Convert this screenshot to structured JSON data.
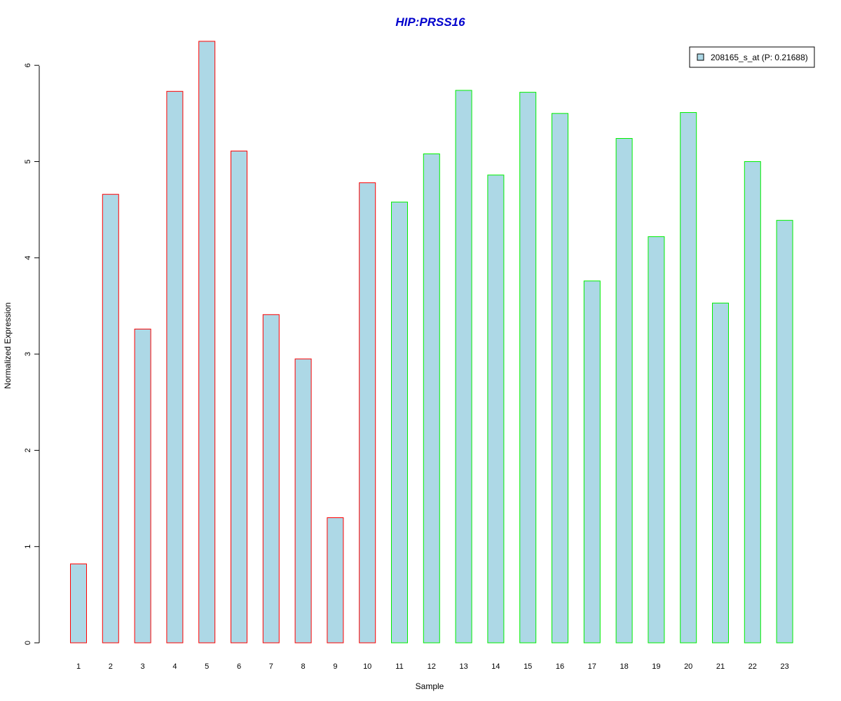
{
  "chart_data": {
    "type": "bar",
    "title": "HIP:PRSS16",
    "xlabel": "Sample",
    "ylabel": "Normalized Expression",
    "categories": [
      "1",
      "2",
      "3",
      "4",
      "5",
      "6",
      "7",
      "8",
      "9",
      "10",
      "11",
      "12",
      "13",
      "14",
      "15",
      "16",
      "17",
      "18",
      "19",
      "20",
      "21",
      "22",
      "23"
    ],
    "series": [
      {
        "name": "208165_s_at (P: 0.21688)",
        "values": [
          0.82,
          4.66,
          3.26,
          5.73,
          6.25,
          5.11,
          3.41,
          2.95,
          1.3,
          4.78,
          4.58,
          5.08,
          5.74,
          4.86,
          5.72,
          5.5,
          3.76,
          5.24,
          4.22,
          5.51,
          3.53,
          5.0,
          4.39
        ]
      }
    ],
    "groups": [
      {
        "samples": [
          1,
          2,
          3,
          4,
          5,
          6,
          7,
          8,
          9,
          10
        ],
        "border_color": "#ff0000"
      },
      {
        "samples": [
          11,
          12,
          13,
          14,
          15,
          16,
          17,
          18,
          19,
          20,
          21,
          22,
          23
        ],
        "border_color": "#00ee00"
      }
    ],
    "yticks": [
      0,
      1,
      2,
      3,
      4,
      5,
      6
    ],
    "ylim": [
      0,
      6.25
    ],
    "grid": false,
    "legend_position": "top-right",
    "colors": {
      "bar_fill": "#add8e6",
      "title": "#0000cc",
      "axis": "#000000"
    }
  }
}
